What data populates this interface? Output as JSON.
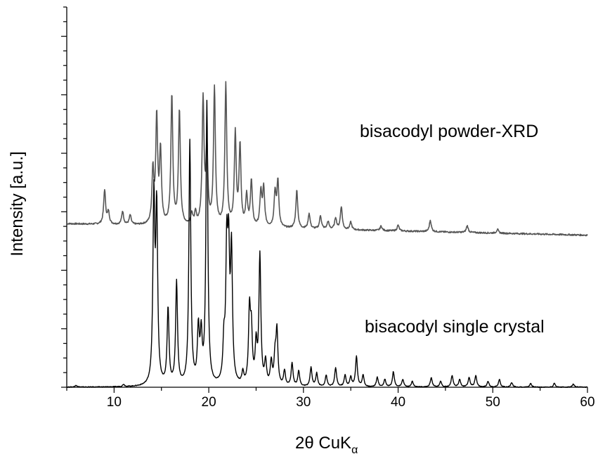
{
  "chart_data": {
    "type": "line",
    "xlabel": "2θ CuK",
    "xlabel_subscript": "α",
    "ylabel": "Intensity [a.u.]",
    "xlim": [
      5,
      60
    ],
    "ylim": [
      0,
      1
    ],
    "x_ticks": [
      10,
      20,
      30,
      40,
      50,
      60
    ],
    "y_tick_labels_shown": false,
    "grid": false,
    "legend": "none",
    "series": [
      {
        "name": "bisacodyl powder-XRD",
        "color": "#555555",
        "baseline": 0.43,
        "baseline_end": 0.4,
        "peaks": [
          [
            9.0,
            0.09
          ],
          [
            9.4,
            0.032
          ],
          [
            10.9,
            0.035
          ],
          [
            11.7,
            0.025
          ],
          [
            14.1,
            0.14
          ],
          [
            14.5,
            0.28
          ],
          [
            14.9,
            0.19
          ],
          [
            16.1,
            0.34
          ],
          [
            16.9,
            0.3
          ],
          [
            18.2,
            0.03
          ],
          [
            18.6,
            0.03
          ],
          [
            19.4,
            0.33
          ],
          [
            19.8,
            0.2
          ],
          [
            20.6,
            0.36
          ],
          [
            21.8,
            0.37
          ],
          [
            22.8,
            0.24
          ],
          [
            23.3,
            0.21
          ],
          [
            24.0,
            0.08
          ],
          [
            24.5,
            0.12
          ],
          [
            25.5,
            0.09
          ],
          [
            25.8,
            0.1
          ],
          [
            27.0,
            0.09
          ],
          [
            27.3,
            0.12
          ],
          [
            29.3,
            0.1
          ],
          [
            30.6,
            0.04
          ],
          [
            31.8,
            0.035
          ],
          [
            32.6,
            0.02
          ],
          [
            33.4,
            0.03
          ],
          [
            34.0,
            0.06
          ],
          [
            35.0,
            0.02
          ],
          [
            38.2,
            0.012
          ],
          [
            40.0,
            0.015
          ],
          [
            43.4,
            0.03
          ],
          [
            47.3,
            0.018
          ],
          [
            50.5,
            0.01
          ]
        ]
      },
      {
        "name": "bisacodyl single crystal",
        "color": "#000000",
        "baseline": 0.0,
        "peaks": [
          [
            6.0,
            0.005
          ],
          [
            11.0,
            0.006
          ],
          [
            14.2,
            0.48
          ],
          [
            14.5,
            0.45
          ],
          [
            15.7,
            0.2
          ],
          [
            16.6,
            0.27
          ],
          [
            18.0,
            0.64
          ],
          [
            18.9,
            0.14
          ],
          [
            19.2,
            0.12
          ],
          [
            19.8,
            0.74
          ],
          [
            21.6,
            0.1
          ],
          [
            21.9,
            0.33
          ],
          [
            22.1,
            0.31
          ],
          [
            22.4,
            0.34
          ],
          [
            23.6,
            0.03
          ],
          [
            24.3,
            0.19
          ],
          [
            24.5,
            0.13
          ],
          [
            25.0,
            0.1
          ],
          [
            25.4,
            0.34
          ],
          [
            26.0,
            0.06
          ],
          [
            26.6,
            0.06
          ],
          [
            27.0,
            0.07
          ],
          [
            27.2,
            0.14
          ],
          [
            28.0,
            0.04
          ],
          [
            28.8,
            0.06
          ],
          [
            29.5,
            0.04
          ],
          [
            30.8,
            0.05
          ],
          [
            31.4,
            0.035
          ],
          [
            32.4,
            0.03
          ],
          [
            33.4,
            0.05
          ],
          [
            34.4,
            0.03
          ],
          [
            35.0,
            0.025
          ],
          [
            35.6,
            0.08
          ],
          [
            36.3,
            0.03
          ],
          [
            37.8,
            0.025
          ],
          [
            38.6,
            0.02
          ],
          [
            39.5,
            0.04
          ],
          [
            40.5,
            0.02
          ],
          [
            41.5,
            0.015
          ],
          [
            43.5,
            0.025
          ],
          [
            44.5,
            0.015
          ],
          [
            45.7,
            0.03
          ],
          [
            46.5,
            0.02
          ],
          [
            47.5,
            0.025
          ],
          [
            48.2,
            0.03
          ],
          [
            49.5,
            0.015
          ],
          [
            50.7,
            0.02
          ],
          [
            52.0,
            0.012
          ],
          [
            54.0,
            0.01
          ],
          [
            56.5,
            0.01
          ],
          [
            58.5,
            0.008
          ]
        ]
      }
    ]
  }
}
